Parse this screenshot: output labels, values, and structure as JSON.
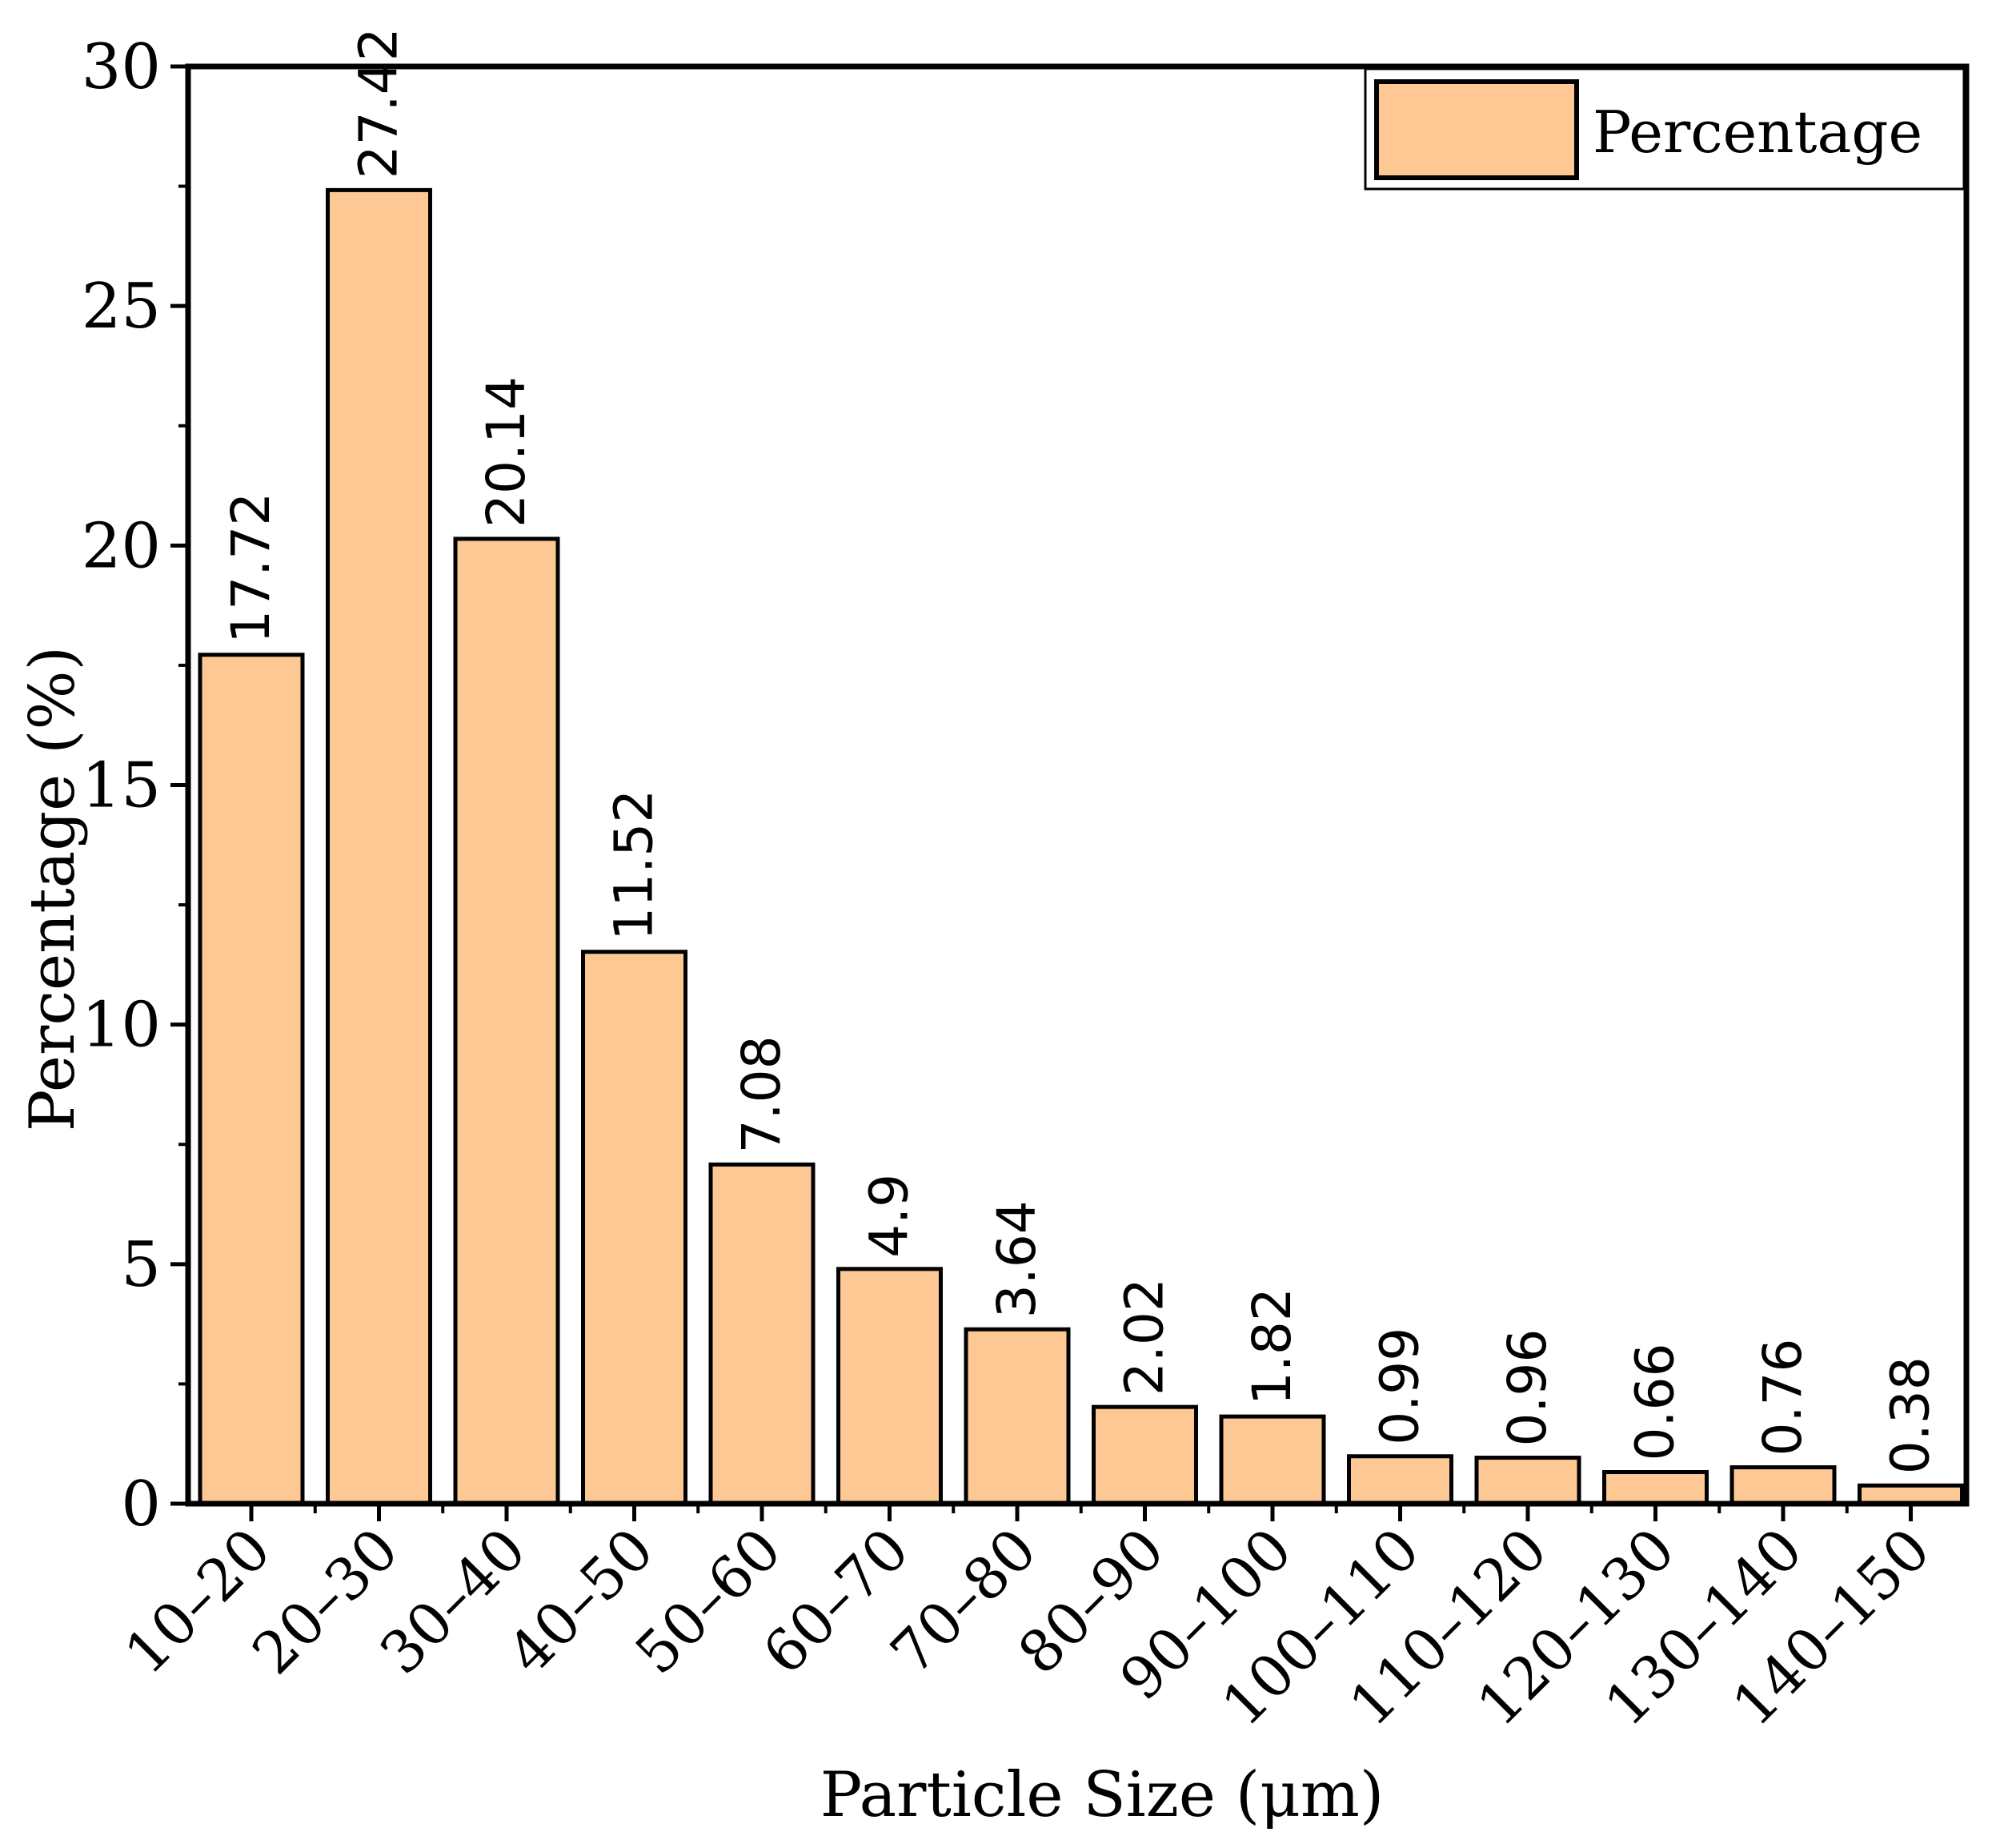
{
  "chart_data": {
    "type": "bar",
    "categories": [
      "10–20",
      "20–30",
      "30–40",
      "40–50",
      "50–60",
      "60–70",
      "70–80",
      "80–90",
      "90–100",
      "100–110",
      "110–120",
      "120–130",
      "130–140",
      "140–150"
    ],
    "values": [
      17.72,
      27.42,
      20.14,
      11.52,
      7.08,
      4.9,
      3.64,
      2.02,
      1.82,
      0.99,
      0.96,
      0.66,
      0.76,
      0.38
    ],
    "value_labels": [
      "17.72",
      "27.42",
      "20.14",
      "11.52",
      "7.08",
      "4.9",
      "3.64",
      "2.02",
      "1.82",
      "0.99",
      "0.96",
      "0.66",
      "0.76",
      "0.38"
    ],
    "xlabel": "Particle Size (μm)",
    "ylabel": "Percentage (%)",
    "ylim": [
      0,
      30
    ],
    "yticks": [
      "0",
      "5",
      "10",
      "15",
      "20",
      "25",
      "30"
    ],
    "legend": {
      "label": "Percentage",
      "placement": "top-right"
    },
    "grid": false,
    "colors": {
      "bar_fill": "#FDC894",
      "bar_stroke": "#000000",
      "axis": "#000000"
    }
  }
}
